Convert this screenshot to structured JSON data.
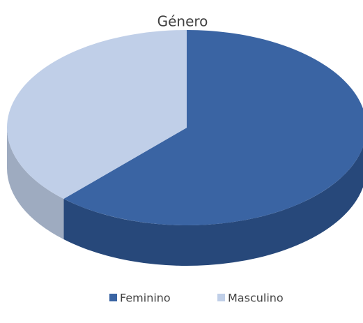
{
  "chart_data": {
    "type": "pie3d",
    "title": "Género",
    "categories": [
      "Feminino",
      "Masculino"
    ],
    "values": [
      62,
      38
    ],
    "colors": [
      "#3a64a3",
      "#c0cfe8"
    ],
    "side_colors": [
      "#27487a",
      "#9eabc0"
    ],
    "legend": "bottom"
  }
}
